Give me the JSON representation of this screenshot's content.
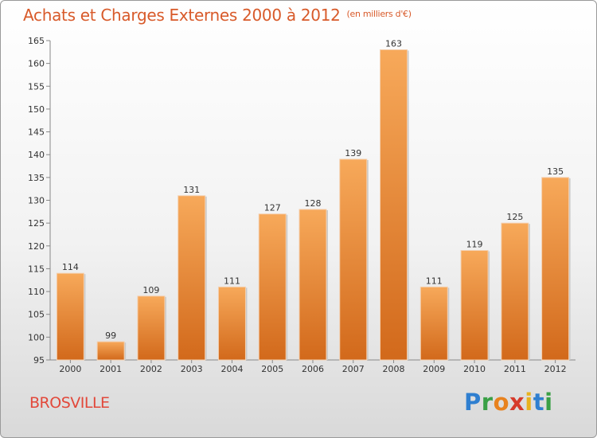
{
  "header": {
    "title": "Achats et Charges Externes 2000 à 2012",
    "unit": "(en milliers d'€)"
  },
  "footer": {
    "city": "BROSVILLE",
    "logo": [
      "P",
      "r",
      "o",
      "x",
      "i",
      "t",
      "i"
    ]
  },
  "colors": {
    "bar_light": "#f7a95a",
    "bar_dark": "#d2691b",
    "title": "#d85a2a",
    "city": "#e2483a",
    "logo": [
      "#2f7fd0",
      "#3aa046",
      "#e8821e",
      "#d63a2b",
      "#e8b21e",
      "#2f7fd0",
      "#3aa046"
    ]
  },
  "chart_data": {
    "type": "bar",
    "title": "Achats et Charges Externes 2000 à 2012",
    "subtitle": "(en milliers d'€)",
    "categories": [
      "2000",
      "2001",
      "2002",
      "2003",
      "2004",
      "2005",
      "2006",
      "2007",
      "2008",
      "2009",
      "2010",
      "2011",
      "2012"
    ],
    "values": [
      114,
      99,
      109,
      131,
      111,
      127,
      128,
      139,
      163,
      111,
      119,
      125,
      135
    ],
    "xlabel": "",
    "ylabel": "",
    "ylim": [
      95,
      165
    ],
    "yticks": [
      95,
      100,
      105,
      110,
      115,
      120,
      125,
      130,
      135,
      140,
      145,
      150,
      155,
      160,
      165
    ],
    "grid": false,
    "legend": "none"
  }
}
